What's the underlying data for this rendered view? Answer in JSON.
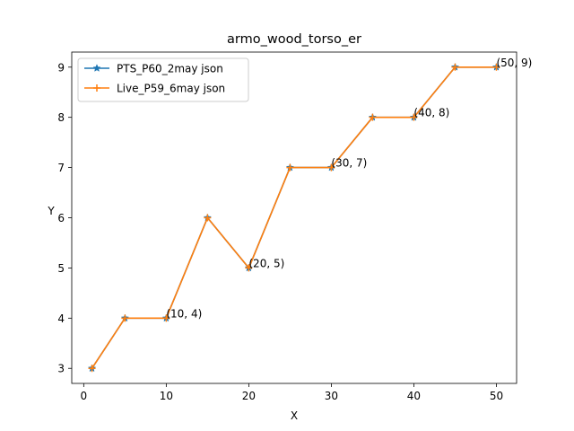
{
  "chart_data": {
    "type": "line",
    "title": "armo_wood_torso_er",
    "xlabel": "X",
    "ylabel": "Y",
    "xlim": [
      -1.45,
      52.45
    ],
    "ylim": [
      2.7,
      9.3
    ],
    "xticks": [
      0,
      10,
      20,
      30,
      40,
      50
    ],
    "yticks": [
      3,
      4,
      5,
      6,
      7,
      8,
      9
    ],
    "grid": false,
    "legend_position": "upper left",
    "series": [
      {
        "name": "PTS_P60_2may json",
        "color": "#1f77b4",
        "marker": "star",
        "x": [
          1,
          5,
          10,
          15,
          20,
          25,
          30,
          35,
          40,
          45,
          50
        ],
        "y": [
          3,
          4,
          4,
          6,
          5,
          7,
          7,
          8,
          8,
          9,
          9
        ]
      },
      {
        "name": "Live_P59_6may json",
        "color": "#ff7f0e",
        "marker": "plus",
        "x": [
          1,
          5,
          10,
          15,
          20,
          25,
          30,
          35,
          40,
          45,
          50
        ],
        "y": [
          3,
          4,
          4,
          6,
          5,
          7,
          7,
          8,
          8,
          9,
          9
        ]
      }
    ],
    "annotations": [
      {
        "text": "(10, 4)",
        "x": 10,
        "y": 4
      },
      {
        "text": "(20, 5)",
        "x": 20,
        "y": 5
      },
      {
        "text": "(30, 7)",
        "x": 30,
        "y": 7
      },
      {
        "text": "(40, 8)",
        "x": 40,
        "y": 8
      },
      {
        "text": "(50, 9)",
        "x": 50,
        "y": 9
      }
    ]
  }
}
